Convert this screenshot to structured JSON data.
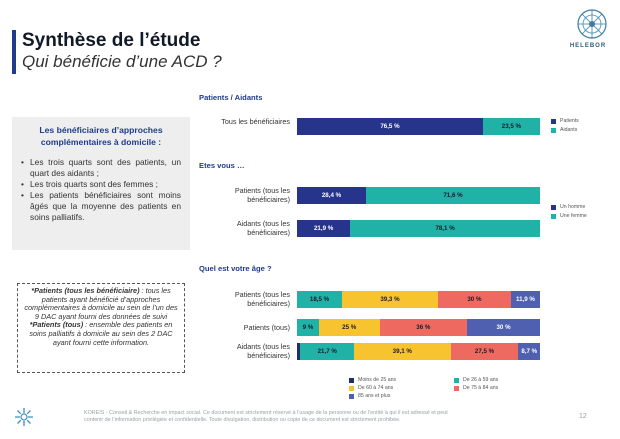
{
  "header": {
    "title": "Synthèse de l’étude",
    "subtitle": "Qui bénéficie d’une ACD ?"
  },
  "logo": {
    "text": "HELEBOR"
  },
  "summary": {
    "title": "Les bénéficiaires d’approches complémentaires à domicile :",
    "items": [
      "Les trois quarts sont des patients, un quart des aidants ;",
      "Les trois quarts sont des femmes ;",
      "Les patients bénéficiaires sont moins âgés que la moyenne des patients en soins palliatifs."
    ]
  },
  "note": {
    "term1": "*Patients (tous les bénéficiaire)",
    "def1": " : tous les patients ayant bénéficié d’approches complémentaires à domicile au sein de l’un des 9 DAC ayant fourni des données de suivi",
    "term2": "*Patients (tous)",
    "def2": " : ensemble des patients en soins palliatifs à domicile au sein des 2 DAC ayant fourni cette information."
  },
  "chart_data": [
    {
      "type": "bar",
      "orientation": "horizontal",
      "stacked": true,
      "title": "Patients / Aidants",
      "categories": [
        "Tous les bénéficiaires"
      ],
      "series": [
        {
          "name": "Patients",
          "color": "#27348b",
          "values": [
            76.5
          ],
          "labels": [
            "76,5 %"
          ]
        },
        {
          "name": "Aidants",
          "color": "#20b2a6",
          "values": [
            23.5
          ],
          "labels": [
            "23,5 %"
          ]
        }
      ],
      "legend_position": "right"
    },
    {
      "type": "bar",
      "orientation": "horizontal",
      "stacked": true,
      "title": "Etes vous …",
      "categories": [
        "Patients (tous les bénéficiaires)",
        "Aidants (tous les bénéficiaires)"
      ],
      "series": [
        {
          "name": "Un homme",
          "color": "#27348b",
          "values": [
            28.4,
            21.9
          ],
          "labels": [
            "28,4 %",
            "21,9 %"
          ]
        },
        {
          "name": "Une femme",
          "color": "#20b2a6",
          "values": [
            71.6,
            78.1
          ],
          "labels": [
            "71,6 %",
            "78,1 %"
          ]
        }
      ],
      "legend_position": "right"
    },
    {
      "type": "bar",
      "orientation": "horizontal",
      "stacked": true,
      "title": "Quel est votre âge ?",
      "categories": [
        "Patients (tous les bénéficiaires)",
        "Patients (tous)",
        "Aidants (tous les bénéficiaires)"
      ],
      "series": [
        {
          "name": "Moins de 25 ans",
          "color": "#1f2f6e",
          "values": [
            0,
            0,
            1.4
          ],
          "labels": [
            "",
            "",
            ""
          ]
        },
        {
          "name": "De 26 à 59 ans",
          "color": "#20b2a6",
          "values": [
            18.5,
            9,
            21.7
          ],
          "labels": [
            "18,5 %",
            "9 %",
            "21,7 %"
          ]
        },
        {
          "name": "De 60 à 74 ans",
          "color": "#f7c430",
          "values": [
            39.3,
            25,
            39.1
          ],
          "labels": [
            "39,3 %",
            "25 %",
            "39,1 %"
          ]
        },
        {
          "name": "De 75 à 84 ans",
          "color": "#ee6a60",
          "values": [
            30,
            36,
            27.5
          ],
          "labels": [
            "30 %",
            "36 %",
            "27,5 %"
          ]
        },
        {
          "name": "85 ans et plus",
          "color": "#5060b0",
          "values": [
            11.9,
            30,
            8.7
          ],
          "labels": [
            "11,9 %",
            "30 %",
            "8,7 %"
          ]
        }
      ],
      "legend_position": "bottom"
    }
  ],
  "footer": {
    "text": "KOREIS - Conseil & Recherche en impact social. Ce document est strictement réservé à l’usage de la personne ou de l’entité à qui il est adressé et peut contenir de l’information privilégiée et confidentielle. Toute divulgation, distribution ou copie de ce document est strictement prohibée.",
    "page": "12"
  }
}
